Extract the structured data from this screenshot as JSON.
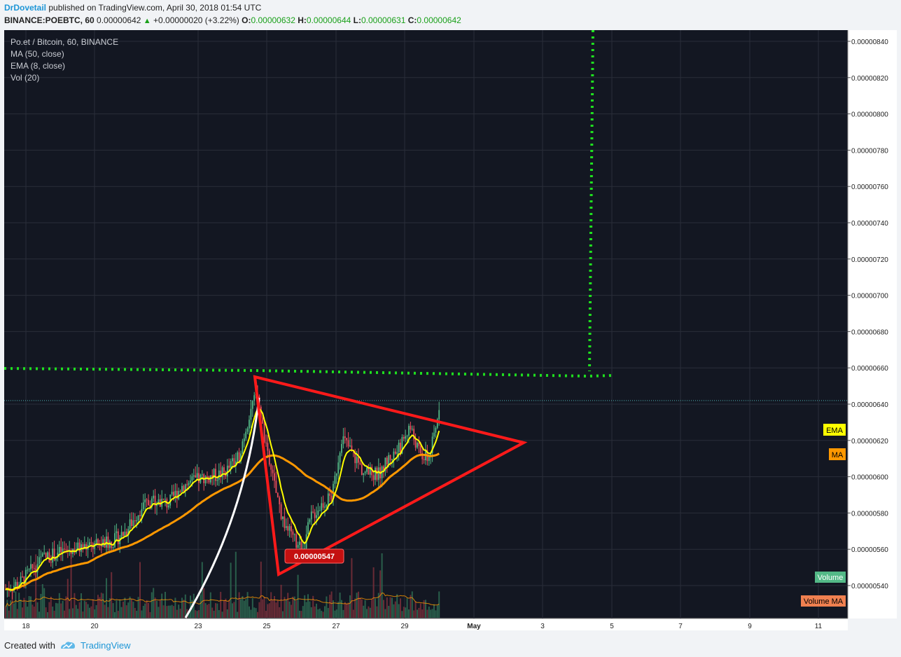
{
  "header": {
    "author": "DrDovetail",
    "published": "published on TradingView.com, April 30, 2018 01:54 UTC",
    "symbol_line": "BINANCE:POEBTC, 60",
    "last": "0.00000642",
    "change": "+0.00000020 (+3.22%)",
    "o_label": "O:",
    "o": "0.00000632",
    "h_label": "H:",
    "h": "0.00000644",
    "l_label": "L:",
    "l": "0.00000631",
    "c_label": "C:",
    "c": "0.00000642"
  },
  "legend": {
    "title": "Po.et / Bitcoin, 60, BINANCE",
    "ma": "MA (50, close)",
    "ema": "EMA (8, close)",
    "vol": "Vol (20)"
  },
  "badges": {
    "ema": "EMA",
    "ma": "MA",
    "volume": "Volume",
    "volume_ma": "Volume MA",
    "low_label": "0.00000547"
  },
  "footer": {
    "created_with": "Created with",
    "brand": "TradingView"
  },
  "colors": {
    "background": "#131722",
    "grid": "#2a2e39",
    "up": "#53b987",
    "down": "#eb4d5c",
    "ema": "#ffff00",
    "ma": "#ff9800",
    "pattern": "#ff1a1a",
    "target": "#1fe01f",
    "arc": "#ffffff"
  },
  "chart_data": {
    "type": "candlestick",
    "price_axis": {
      "min": 5.3e-06,
      "max": 8.5e-06,
      "ticks": [
        "0.00000540",
        "0.00000560",
        "0.00000580",
        "0.00000600",
        "0.00000620",
        "0.00000640",
        "0.00000660",
        "0.00000680",
        "0.00000700",
        "0.00000720",
        "0.00000740",
        "0.00000760",
        "0.00000780",
        "0.00000800",
        "0.00000820",
        "0.00000840"
      ]
    },
    "time_axis": {
      "ticks": [
        "18",
        "20",
        "23",
        "25",
        "27",
        "29",
        "May",
        "3",
        "5",
        "7",
        "9",
        "11"
      ],
      "bold_ticks": [
        "May"
      ]
    },
    "last_price": 6.42e-06,
    "ema_8_end": 6.26e-06,
    "ma_50_end": 6.12e-06,
    "annotated_low": 5.47e-06,
    "resistance_level": 6.58e-06,
    "target_level": 8.5e-06,
    "triangle": {
      "top": [
        "Apr 24",
        6.55e-06
      ],
      "apex": [
        "May 2",
        6.18e-06
      ],
      "bottom": [
        "Apr 25",
        5.47e-06
      ]
    }
  },
  "icons": {
    "footer_logo": "tradingview-logo-icon"
  }
}
